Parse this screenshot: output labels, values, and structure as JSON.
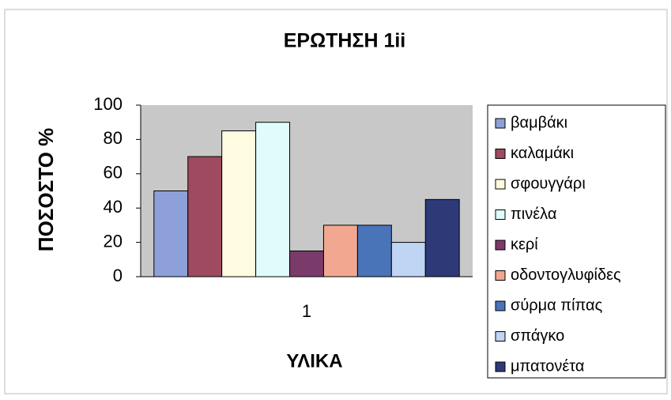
{
  "chart_data": {
    "type": "bar",
    "title": "ΕΡΩΤΗΣΗ 1ii",
    "x_label": "ΥΛΙΚΑ",
    "y_label": "ΠΟΣΟΣΤΟ %",
    "categories": [
      "1"
    ],
    "series": [
      {
        "name": "βαμβάκι",
        "color": "#8ea0d8",
        "values": [
          50
        ]
      },
      {
        "name": "καλαμάκι",
        "color": "#9e4a60",
        "values": [
          70
        ]
      },
      {
        "name": "σφουγγάρι",
        "color": "#fffbe0",
        "values": [
          85
        ]
      },
      {
        "name": "πινέλα",
        "color": "#e0fbfb",
        "values": [
          90
        ]
      },
      {
        "name": "κερί",
        "color": "#7a3a6a",
        "values": [
          15
        ]
      },
      {
        "name": "οδοντογλυφίδες",
        "color": "#f2a890",
        "values": [
          30
        ]
      },
      {
        "name": "σύρμα πίπας",
        "color": "#4a74b8",
        "values": [
          30
        ]
      },
      {
        "name": "σπάγκο",
        "color": "#c0d4f4",
        "values": [
          20
        ]
      },
      {
        "name": "μπατονέτα",
        "color": "#2e3a78",
        "values": [
          45
        ]
      }
    ],
    "ylim": [
      0,
      100
    ],
    "yticks": [
      0,
      20,
      40,
      60,
      80,
      100
    ],
    "grid": false,
    "legend": "right"
  }
}
